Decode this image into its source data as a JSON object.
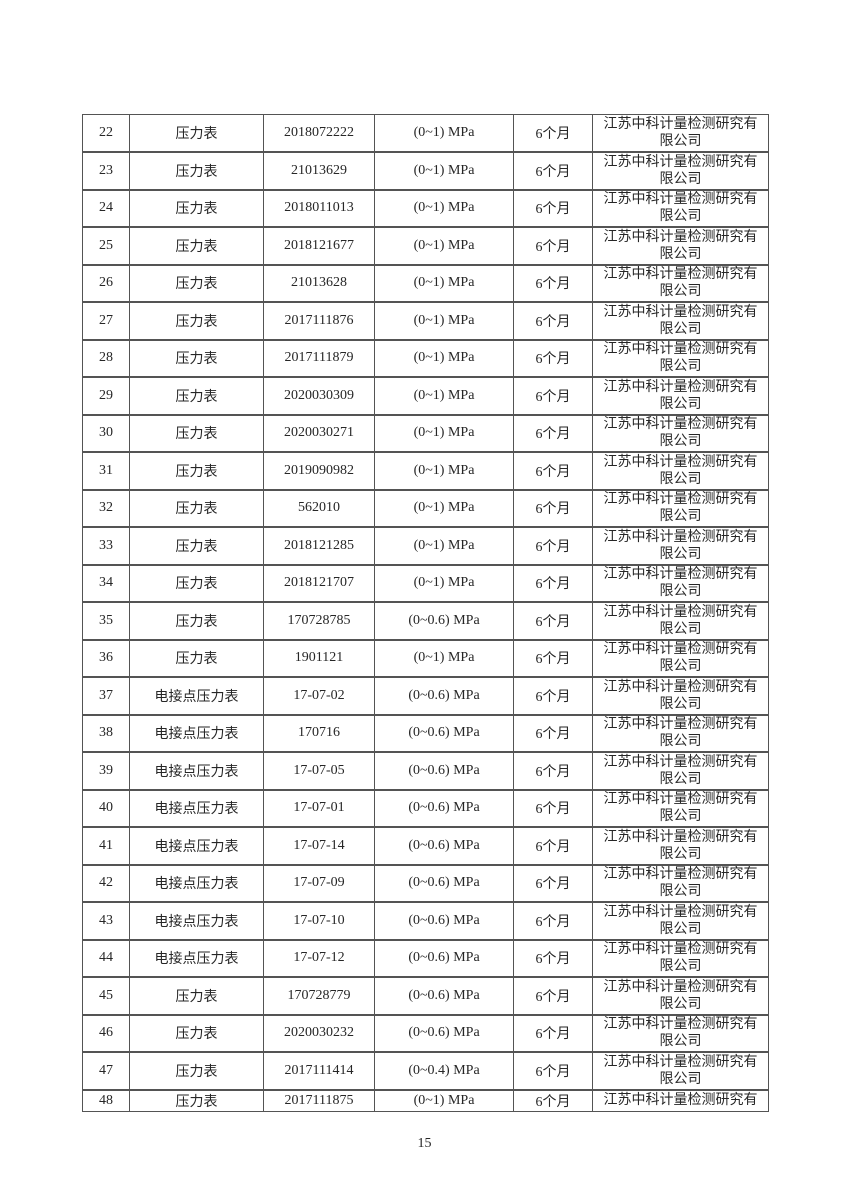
{
  "page": {
    "number": "15"
  },
  "table": {
    "rows": [
      {
        "no": "22",
        "name": "压力表",
        "serial": "2018072222",
        "range": "(0~1) MPa",
        "interval": "6个月",
        "company": [
          "江苏中科计量检测研究有",
          "限公司"
        ]
      },
      {
        "no": "23",
        "name": "压力表",
        "serial": "21013629",
        "range": "(0~1) MPa",
        "interval": "6个月",
        "company": [
          "江苏中科计量检测研究有",
          "限公司"
        ]
      },
      {
        "no": "24",
        "name": "压力表",
        "serial": "2018011013",
        "range": "(0~1) MPa",
        "interval": "6个月",
        "company": [
          "江苏中科计量检测研究有",
          "限公司"
        ]
      },
      {
        "no": "25",
        "name": "压力表",
        "serial": "2018121677",
        "range": "(0~1) MPa",
        "interval": "6个月",
        "company": [
          "江苏中科计量检测研究有",
          "限公司"
        ]
      },
      {
        "no": "26",
        "name": "压力表",
        "serial": "21013628",
        "range": "(0~1) MPa",
        "interval": "6个月",
        "company": [
          "江苏中科计量检测研究有",
          "限公司"
        ]
      },
      {
        "no": "27",
        "name": "压力表",
        "serial": "2017111876",
        "range": "(0~1) MPa",
        "interval": "6个月",
        "company": [
          "江苏中科计量检测研究有",
          "限公司"
        ]
      },
      {
        "no": "28",
        "name": "压力表",
        "serial": "2017111879",
        "range": "(0~1) MPa",
        "interval": "6个月",
        "company": [
          "江苏中科计量检测研究有",
          "限公司"
        ]
      },
      {
        "no": "29",
        "name": "压力表",
        "serial": "2020030309",
        "range": "(0~1) MPa",
        "interval": "6个月",
        "company": [
          "江苏中科计量检测研究有",
          "限公司"
        ]
      },
      {
        "no": "30",
        "name": "压力表",
        "serial": "2020030271",
        "range": "(0~1) MPa",
        "interval": "6个月",
        "company": [
          "江苏中科计量检测研究有",
          "限公司"
        ]
      },
      {
        "no": "31",
        "name": "压力表",
        "serial": "2019090982",
        "range": "(0~1) MPa",
        "interval": "6个月",
        "company": [
          "江苏中科计量检测研究有",
          "限公司"
        ]
      },
      {
        "no": "32",
        "name": "压力表",
        "serial": "562010",
        "range": "(0~1) MPa",
        "interval": "6个月",
        "company": [
          "江苏中科计量检测研究有",
          "限公司"
        ]
      },
      {
        "no": "33",
        "name": "压力表",
        "serial": "2018121285",
        "range": "(0~1) MPa",
        "interval": "6个月",
        "company": [
          "江苏中科计量检测研究有",
          "限公司"
        ]
      },
      {
        "no": "34",
        "name": "压力表",
        "serial": "2018121707",
        "range": "(0~1) MPa",
        "interval": "6个月",
        "company": [
          "江苏中科计量检测研究有",
          "限公司"
        ]
      },
      {
        "no": "35",
        "name": "压力表",
        "serial": "170728785",
        "range": "(0~0.6) MPa",
        "interval": "6个月",
        "company": [
          "江苏中科计量检测研究有",
          "限公司"
        ]
      },
      {
        "no": "36",
        "name": "压力表",
        "serial": "1901121",
        "range": "(0~1) MPa",
        "interval": "6个月",
        "company": [
          "江苏中科计量检测研究有",
          "限公司"
        ]
      },
      {
        "no": "37",
        "name": "电接点压力表",
        "serial": "17-07-02",
        "range": "(0~0.6) MPa",
        "interval": "6个月",
        "company": [
          "江苏中科计量检测研究有",
          "限公司"
        ]
      },
      {
        "no": "38",
        "name": "电接点压力表",
        "serial": "170716",
        "range": "(0~0.6) MPa",
        "interval": "6个月",
        "company": [
          "江苏中科计量检测研究有",
          "限公司"
        ]
      },
      {
        "no": "39",
        "name": "电接点压力表",
        "serial": "17-07-05",
        "range": "(0~0.6) MPa",
        "interval": "6个月",
        "company": [
          "江苏中科计量检测研究有",
          "限公司"
        ]
      },
      {
        "no": "40",
        "name": "电接点压力表",
        "serial": "17-07-01",
        "range": "(0~0.6) MPa",
        "interval": "6个月",
        "company": [
          "江苏中科计量检测研究有",
          "限公司"
        ]
      },
      {
        "no": "41",
        "name": "电接点压力表",
        "serial": "17-07-14",
        "range": "(0~0.6) MPa",
        "interval": "6个月",
        "company": [
          "江苏中科计量检测研究有",
          "限公司"
        ]
      },
      {
        "no": "42",
        "name": "电接点压力表",
        "serial": "17-07-09",
        "range": "(0~0.6) MPa",
        "interval": "6个月",
        "company": [
          "江苏中科计量检测研究有",
          "限公司"
        ]
      },
      {
        "no": "43",
        "name": "电接点压力表",
        "serial": "17-07-10",
        "range": "(0~0.6) MPa",
        "interval": "6个月",
        "company": [
          "江苏中科计量检测研究有",
          "限公司"
        ]
      },
      {
        "no": "44",
        "name": "电接点压力表",
        "serial": "17-07-12",
        "range": "(0~0.6) MPa",
        "interval": "6个月",
        "company": [
          "江苏中科计量检测研究有",
          "限公司"
        ]
      },
      {
        "no": "45",
        "name": "压力表",
        "serial": "170728779",
        "range": "(0~0.6) MPa",
        "interval": "6个月",
        "company": [
          "江苏中科计量检测研究有",
          "限公司"
        ]
      },
      {
        "no": "46",
        "name": "压力表",
        "serial": "2020030232",
        "range": "(0~0.6) MPa",
        "interval": "6个月",
        "company": [
          "江苏中科计量检测研究有",
          "限公司"
        ]
      },
      {
        "no": "47",
        "name": "压力表",
        "serial": "2017111414",
        "range": "(0~0.4) MPa",
        "interval": "6个月",
        "company": [
          "江苏中科计量检测研究有",
          "限公司"
        ]
      },
      {
        "no": "48",
        "name": "压力表",
        "serial": "2017111875",
        "range": "(0~1) MPa",
        "interval": "6个月",
        "company": [
          "江苏中科计量检测研究有"
        ]
      }
    ]
  }
}
